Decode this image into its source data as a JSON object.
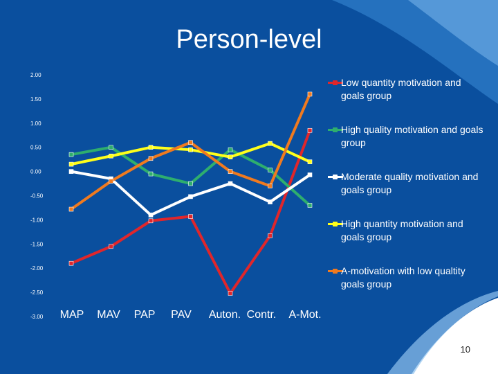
{
  "slide": {
    "title": "Person-level",
    "page_number": "10"
  },
  "colors": {
    "background": "#0a4f9e",
    "white_panel": "#ffffff"
  },
  "chart_data": {
    "type": "line",
    "title": "",
    "xlabel": "",
    "ylabel": "",
    "ylim": [
      -3.0,
      2.0
    ],
    "grid": false,
    "legend_position": "right",
    "categories": [
      "MAP",
      "MAV",
      "PAP",
      "PAV",
      "Auton.",
      "Contr.",
      "A-Mot."
    ],
    "y_ticks": [
      "2.00",
      "1.50",
      "1.00",
      "0.50",
      "0.00",
      "-0.50",
      "-1.00",
      "-1.50",
      "-2.00",
      "-2.50",
      "-3.00"
    ],
    "y_tick_values": [
      2.0,
      1.5,
      1.0,
      0.5,
      0.0,
      -0.5,
      -1.0,
      -1.5,
      -2.0,
      -2.5,
      -3.0
    ],
    "series": [
      {
        "name": "Low quantity motivation and goals group",
        "color": "#e0262b",
        "marker": "diamond",
        "values": [
          -1.9,
          -1.55,
          -1.02,
          -0.93,
          -2.52,
          -1.33,
          0.85
        ]
      },
      {
        "name": "High quality motivation and goals group",
        "color": "#2eae6e",
        "marker": "square",
        "values": [
          0.35,
          0.5,
          -0.05,
          -0.25,
          0.45,
          0.03,
          -0.7
        ]
      },
      {
        "name": "Moderate quality motivation and goals group",
        "color": "#ffffff",
        "marker": "triangle",
        "values": [
          0.0,
          -0.15,
          -0.9,
          -0.52,
          -0.25,
          -0.63,
          -0.07
        ]
      },
      {
        "name": "High quantity motivation and goals group",
        "color": "#ffff1a",
        "marker": "x",
        "values": [
          0.15,
          0.32,
          0.5,
          0.45,
          0.3,
          0.58,
          0.2
        ]
      },
      {
        "name": "A-motivation with low qualtity goals group",
        "color": "#f07a1f",
        "marker": "star",
        "values": [
          -0.78,
          -0.2,
          0.27,
          0.6,
          0.0,
          -0.3,
          1.6
        ]
      }
    ]
  }
}
